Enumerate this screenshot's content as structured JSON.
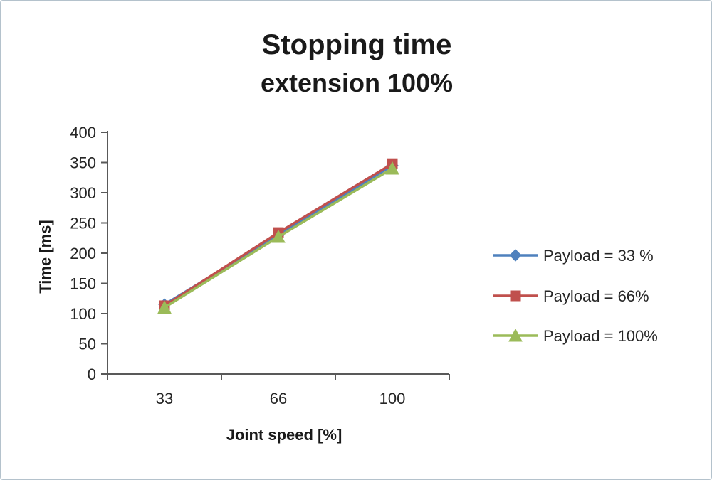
{
  "chart_data": {
    "type": "line",
    "title": "Stopping time",
    "subtitle": "extension 100%",
    "xlabel": "Joint speed [%]",
    "ylabel": "Time [ms]",
    "categories": [
      "33",
      "66",
      "100"
    ],
    "series": [
      {
        "name": "Payload = 33 %",
        "values": [
          115,
          230,
          345
        ],
        "color": "#4F81BD",
        "marker": "diamond"
      },
      {
        "name": "Payload =  66%",
        "values": [
          113,
          234,
          348
        ],
        "color": "#C0504D",
        "marker": "square"
      },
      {
        "name": "Payload =  100%",
        "values": [
          110,
          227,
          340
        ],
        "color": "#9BBB59",
        "marker": "triangle"
      }
    ],
    "ylim": [
      0,
      400
    ],
    "ytick_step": 50,
    "grid": false,
    "legend_position": "right",
    "axis_color": "#595959"
  }
}
